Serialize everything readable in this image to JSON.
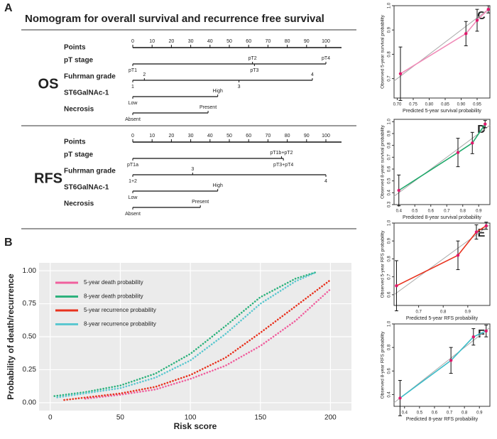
{
  "chart_data": [
    {
      "type": "nomogram",
      "panel": "A",
      "title": "Nomogram for  overall survival and recurrence free survival",
      "points_ticks": [
        0,
        10,
        20,
        30,
        40,
        50,
        60,
        70,
        80,
        90,
        100
      ],
      "sections": [
        {
          "name": "OS",
          "axis_label": "Points",
          "variables": [
            {
              "name": "pT stage",
              "levels": [
                {
                  "label": "pT1",
                  "points": 0
                },
                {
                  "label": "pT2",
                  "points": 62
                },
                {
                  "label": "pT3",
                  "points": 63
                },
                {
                  "label": "pT4",
                  "points": 100
                }
              ]
            },
            {
              "name": "Fuhrman grade",
              "levels": [
                {
                  "label": "1",
                  "points": 0
                },
                {
                  "label": "2",
                  "points": 6
                },
                {
                  "label": "3",
                  "points": 55
                },
                {
                  "label": "4",
                  "points": 93
                }
              ]
            },
            {
              "name": "ST6GalNAc-1",
              "levels": [
                {
                  "label": "Low",
                  "points": 0
                },
                {
                  "label": "High",
                  "points": 44
                }
              ]
            },
            {
              "name": "Necrosis",
              "levels": [
                {
                  "label": "Absent",
                  "points": 0
                },
                {
                  "label": "Present",
                  "points": 39
                }
              ]
            }
          ]
        },
        {
          "name": "RFS",
          "axis_label": "Points",
          "variables": [
            {
              "name": "pT stage",
              "levels": [
                {
                  "label": "pT1a",
                  "points": 0
                },
                {
                  "label": "pT1b+pT2",
                  "points": 77
                },
                {
                  "label": "pT3+pT4",
                  "points": 78
                }
              ]
            },
            {
              "name": "Fuhrman grade",
              "levels": [
                {
                  "label": "1+2",
                  "points": 0
                },
                {
                  "label": "3",
                  "points": 31
                },
                {
                  "label": "4",
                  "points": 100
                }
              ]
            },
            {
              "name": "ST6GalNAc-1",
              "levels": [
                {
                  "label": "Low",
                  "points": 0
                },
                {
                  "label": "High",
                  "points": 44
                }
              ]
            },
            {
              "name": "Necrosis",
              "levels": [
                {
                  "label": "Absent",
                  "points": 0
                },
                {
                  "label": "Present",
                  "points": 35
                }
              ]
            }
          ]
        }
      ]
    },
    {
      "type": "line",
      "panel": "B",
      "xlabel": "Risk score",
      "ylabel": "Probability of death/recurrence",
      "xlim": [
        -8,
        215
      ],
      "ylim": [
        -0.06,
        1.06
      ],
      "xticks": [
        0,
        50,
        100,
        150,
        200
      ],
      "yticks": [
        {
          "value": 0,
          "label": "0.00"
        },
        {
          "value": 0.25,
          "label": "0.25"
        },
        {
          "value": 0.5,
          "label": "0.50"
        },
        {
          "value": 0.75,
          "label": "0.75"
        },
        {
          "value": 1,
          "label": "1.00"
        }
      ],
      "series": [
        {
          "name": "5-year death probability",
          "color": "#f0609e",
          "x": [
            25,
            50,
            75,
            100,
            125,
            150,
            175,
            200
          ],
          "values": [
            0.03,
            0.06,
            0.1,
            0.18,
            0.28,
            0.43,
            0.62,
            0.86
          ]
        },
        {
          "name": "8-year death probability",
          "color": "#2db27d",
          "x": [
            3,
            25,
            50,
            75,
            100,
            125,
            150,
            175,
            190
          ],
          "values": [
            0.05,
            0.08,
            0.13,
            0.22,
            0.37,
            0.58,
            0.8,
            0.94,
            0.99
          ]
        },
        {
          "name": "5-year recurrence probability",
          "color": "#e8321e",
          "x": [
            10,
            50,
            75,
            100,
            125,
            150,
            175,
            200
          ],
          "values": [
            0.02,
            0.07,
            0.12,
            0.21,
            0.34,
            0.53,
            0.73,
            0.93
          ]
        },
        {
          "name": "8-year recurrence probability",
          "color": "#5cc8d0",
          "x": [
            5,
            50,
            75,
            100,
            125,
            150,
            175,
            190
          ],
          "values": [
            0.04,
            0.11,
            0.19,
            0.32,
            0.52,
            0.75,
            0.92,
            0.99
          ]
        }
      ]
    },
    {
      "type": "calibration",
      "panel": "C",
      "xlabel": "Predicted 5-year survival probability",
      "ylabel": "Observed 5-year survival probability",
      "xlim": [
        0.69,
        0.99
      ],
      "ylim": [
        0.62,
        1.0
      ],
      "xticks": [
        {
          "value": 0.7,
          "label": "0.70"
        },
        0.75,
        {
          "value": 0.8,
          "label": "0.80"
        },
        0.85,
        {
          "value": 0.9,
          "label": "0.90"
        },
        0.95
      ],
      "yticks": [
        0.7,
        0.8,
        0.9,
        {
          "value": 1,
          "label": "1.0"
        }
      ],
      "x": [
        0.71,
        0.915,
        0.95,
        0.985
      ],
      "values": [
        0.72,
        0.885,
        0.94,
        0.985
      ],
      "errors": [
        0.11,
        0.05,
        0.045,
        0.015
      ],
      "color": "#f08cb8",
      "marker_color": "#e0186c"
    },
    {
      "type": "calibration",
      "panel": "D",
      "xlabel": "Predicted 8-year survival probability",
      "ylabel": "Observed 8-year survival probability",
      "xlim": [
        0.37,
        0.97
      ],
      "ylim": [
        0.3,
        1.02
      ],
      "xticks": [
        0.4,
        0.5,
        0.6,
        0.7,
        0.8,
        0.9
      ],
      "yticks": [
        0.3,
        0.4,
        0.5,
        0.6,
        0.7,
        0.8,
        0.9,
        {
          "value": 1,
          "label": "1.0"
        }
      ],
      "x": [
        0.4,
        0.77,
        0.86,
        0.94
      ],
      "values": [
        0.42,
        0.74,
        0.82,
        0.98
      ],
      "errors": [
        0.13,
        0.12,
        0.09,
        0.03
      ],
      "color": "#1fa86a",
      "marker_color": "#e0186c"
    },
    {
      "type": "calibration",
      "panel": "E",
      "xlabel": "Predicted 5-year RFS probability",
      "ylabel": "Observed 5-year RFS probability",
      "xlim": [
        0.6,
        0.99
      ],
      "ylim": [
        0.54,
        1.0
      ],
      "xticks": [
        0.7,
        0.8,
        0.9
      ],
      "yticks": [
        0.6,
        0.7,
        0.8,
        0.9,
        {
          "value": 1,
          "label": "1.0"
        }
      ],
      "x": [
        0.61,
        0.86,
        0.935,
        0.975
      ],
      "values": [
        0.65,
        0.82,
        0.95,
        0.985
      ],
      "errors": [
        0.14,
        0.08,
        0.04,
        0.02
      ],
      "color": "#e8321e",
      "marker_color": "#e0186c"
    },
    {
      "type": "calibration",
      "panel": "F",
      "xlabel": "Predicted 8-year RFS probability",
      "ylabel": "Observed 8-year RFS probability",
      "xlim": [
        0.33,
        0.97
      ],
      "ylim": [
        0.3,
        1.0
      ],
      "xticks": [
        0.4,
        0.5,
        0.6,
        0.7,
        0.8,
        0.9
      ],
      "yticks": [
        0.4,
        0.6,
        0.8,
        {
          "value": 1,
          "label": "1.0"
        }
      ],
      "x": [
        0.37,
        0.71,
        0.86,
        0.945
      ],
      "values": [
        0.37,
        0.69,
        0.89,
        0.94
      ],
      "errors": [
        0.15,
        0.11,
        0.07,
        0.05
      ],
      "color": "#3bbcc8",
      "marker_color": "#e0186c"
    }
  ]
}
